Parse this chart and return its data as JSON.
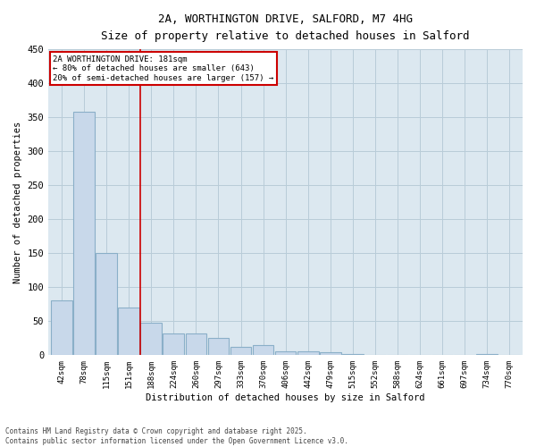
{
  "title_line1": "2A, WORTHINGTON DRIVE, SALFORD, M7 4HG",
  "title_line2": "Size of property relative to detached houses in Salford",
  "xlabel": "Distribution of detached houses by size in Salford",
  "ylabel": "Number of detached properties",
  "bar_color": "#c8d8ea",
  "bar_edge_color": "#8aafc8",
  "grid_color": "#b8ccd8",
  "bg_color": "#dce8f0",
  "annotation_line_color": "#cc0000",
  "annotation_box_color": "#cc0000",
  "annotation_text": "2A WORTHINGTON DRIVE: 181sqm\n← 80% of detached houses are smaller (643)\n20% of semi-detached houses are larger (157) →",
  "categories": [
    "42sqm",
    "78sqm",
    "115sqm",
    "151sqm",
    "188sqm",
    "224sqm",
    "260sqm",
    "297sqm",
    "333sqm",
    "370sqm",
    "406sqm",
    "442sqm",
    "479sqm",
    "515sqm",
    "552sqm",
    "588sqm",
    "624sqm",
    "661sqm",
    "697sqm",
    "734sqm",
    "770sqm"
  ],
  "values": [
    80,
    358,
    150,
    70,
    48,
    32,
    32,
    25,
    12,
    15,
    6,
    6,
    4,
    2,
    1,
    1,
    0,
    0,
    0,
    2,
    1
  ],
  "ylim": [
    0,
    450
  ],
  "yticks": [
    0,
    50,
    100,
    150,
    200,
    250,
    300,
    350,
    400,
    450
  ],
  "vline_x": 3.5,
  "footer_text": "Contains HM Land Registry data © Crown copyright and database right 2025.\nContains public sector information licensed under the Open Government Licence v3.0."
}
